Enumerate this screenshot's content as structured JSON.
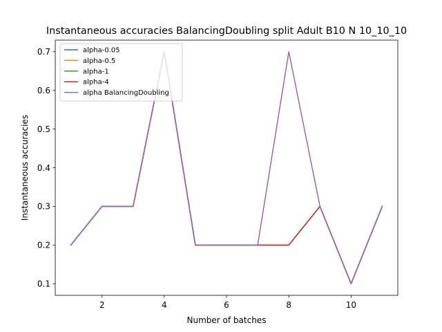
{
  "chart_data": {
    "type": "line",
    "title": "Instantaneous accuracies BalancingDoubling split Adult B10 N 10_10_10",
    "xlabel": "Number of batches",
    "ylabel": "Instantaneous accuracies",
    "xlim": [
      0.5,
      11.5
    ],
    "ylim": [
      0.07,
      0.73
    ],
    "xticks": [
      2,
      4,
      6,
      8,
      10
    ],
    "yticks": [
      0.1,
      0.2,
      0.3,
      0.4,
      0.5,
      0.6,
      0.7
    ],
    "xtick_labels": [
      "2",
      "4",
      "6",
      "8",
      "10"
    ],
    "ytick_labels": [
      "0.1",
      "0.2",
      "0.3",
      "0.4",
      "0.5",
      "0.6",
      "0.7"
    ],
    "grid": false,
    "legend_position": "top-left",
    "x": [
      1,
      2,
      3,
      4,
      5,
      6,
      7,
      8,
      9,
      10,
      11
    ],
    "series": [
      {
        "name": "alpha-0.05",
        "color": "#1f77b4",
        "values": [
          0.2,
          0.3,
          0.3,
          0.7,
          0.2,
          0.2,
          0.2,
          0.2,
          0.3,
          0.1,
          0.3
        ]
      },
      {
        "name": "alpha-0.5",
        "color": "#ff7f0e",
        "values": [
          0.2,
          0.3,
          0.3,
          0.7,
          0.2,
          0.2,
          0.2,
          0.2,
          0.3,
          0.1,
          0.3
        ]
      },
      {
        "name": "alpha-1",
        "color": "#2ca02c",
        "values": [
          0.2,
          0.3,
          0.3,
          0.7,
          0.2,
          0.2,
          0.2,
          0.2,
          0.3,
          0.1,
          0.3
        ]
      },
      {
        "name": "alpha-4",
        "color": "#d62728",
        "values": [
          0.2,
          0.3,
          0.3,
          0.7,
          0.2,
          0.2,
          0.2,
          0.2,
          0.3,
          0.1,
          0.3
        ]
      },
      {
        "name": "alpha BalancingDoubling",
        "color": "#9467bd",
        "values": [
          0.2,
          0.3,
          0.3,
          0.7,
          0.2,
          0.2,
          0.2,
          0.7,
          0.3,
          0.1,
          0.3
        ]
      }
    ]
  }
}
